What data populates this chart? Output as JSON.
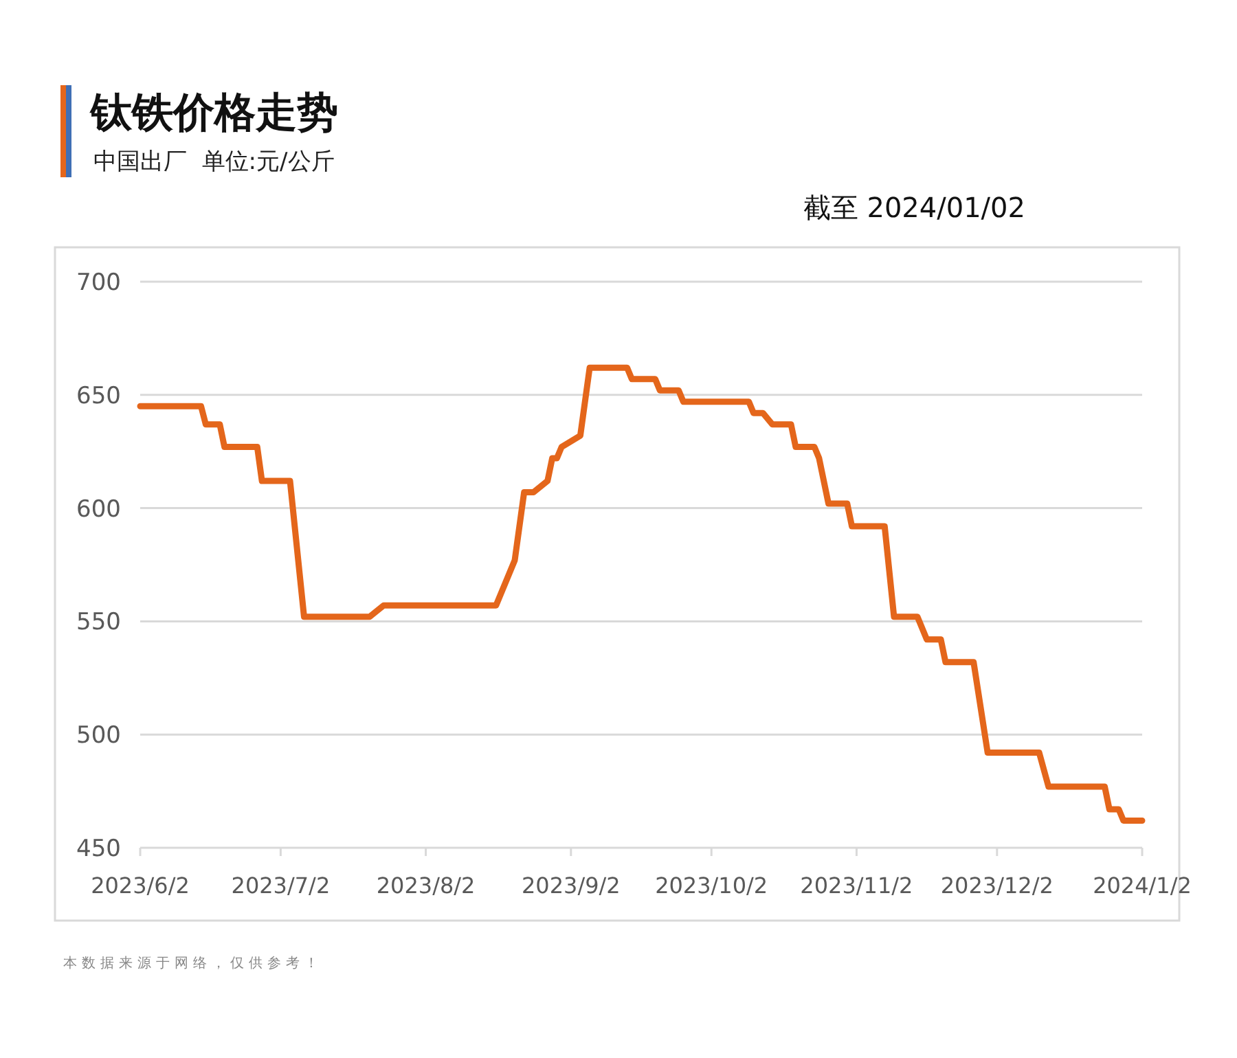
{
  "chart_data": {
    "type": "line",
    "title": "钛铁价格走势",
    "subtitle": "中国出厂  单位:元/公斤",
    "annotations": [
      "截至 2024/01/02",
      "本数据来源于网络，仅供参考！"
    ],
    "x": [
      "2023-06-02",
      "2023-06-15",
      "2023-06-16",
      "2023-06-19",
      "2023-06-20",
      "2023-06-27",
      "2023-06-28",
      "2023-07-04",
      "2023-07-07",
      "2023-07-21",
      "2023-07-24",
      "2023-08-17",
      "2023-08-21",
      "2023-08-23",
      "2023-08-25",
      "2023-08-28",
      "2023-08-29",
      "2023-08-30",
      "2023-08-31",
      "2023-09-04",
      "2023-09-06",
      "2023-09-14",
      "2023-09-15",
      "2023-09-20",
      "2023-09-21",
      "2023-09-25",
      "2023-09-26",
      "2023-10-10",
      "2023-10-11",
      "2023-10-13",
      "2023-10-15",
      "2023-10-19",
      "2023-10-20",
      "2023-10-24",
      "2023-10-25",
      "2023-10-27",
      "2023-10-31",
      "2023-11-01",
      "2023-11-08",
      "2023-11-10",
      "2023-11-15",
      "2023-11-17",
      "2023-11-20",
      "2023-11-21",
      "2023-11-27",
      "2023-11-30",
      "2023-12-11",
      "2023-12-13",
      "2023-12-25",
      "2023-12-26",
      "2023-12-28",
      "2023-12-29",
      "2024-01-02"
    ],
    "series": [
      {
        "color": "#e4661b",
        "values": [
          645,
          645,
          637,
          637,
          627,
          627,
          612,
          612,
          552,
          552,
          557,
          557,
          577,
          607,
          607,
          612,
          622,
          622,
          627,
          632,
          662,
          662,
          657,
          657,
          652,
          652,
          647,
          647,
          642,
          642,
          637,
          637,
          627,
          627,
          622,
          602,
          602,
          592,
          592,
          552,
          552,
          542,
          542,
          532,
          532,
          492,
          492,
          477,
          477,
          467,
          467,
          462,
          462
        ]
      }
    ],
    "xlim": [
      "2023-06-02",
      "2024-01-02"
    ],
    "xticks": [
      {
        "value": "2023-06-02",
        "label": "2023/6/2"
      },
      {
        "value": "2023-07-02",
        "label": "2023/7/2"
      },
      {
        "value": "2023-08-02",
        "label": "2023/8/2"
      },
      {
        "value": "2023-09-02",
        "label": "2023/9/2"
      },
      {
        "value": "2023-10-02",
        "label": "2023/10/2"
      },
      {
        "value": "2023-11-02",
        "label": "2023/11/2"
      },
      {
        "value": "2023-12-02",
        "label": "2023/12/2"
      },
      {
        "value": "2024-01-02",
        "label": "2024/1/2"
      }
    ],
    "ylim": [
      450,
      700
    ],
    "yticks": [
      450,
      500,
      550,
      600,
      650,
      700
    ],
    "grid": "y",
    "marker": "none",
    "line_style": "solid"
  }
}
